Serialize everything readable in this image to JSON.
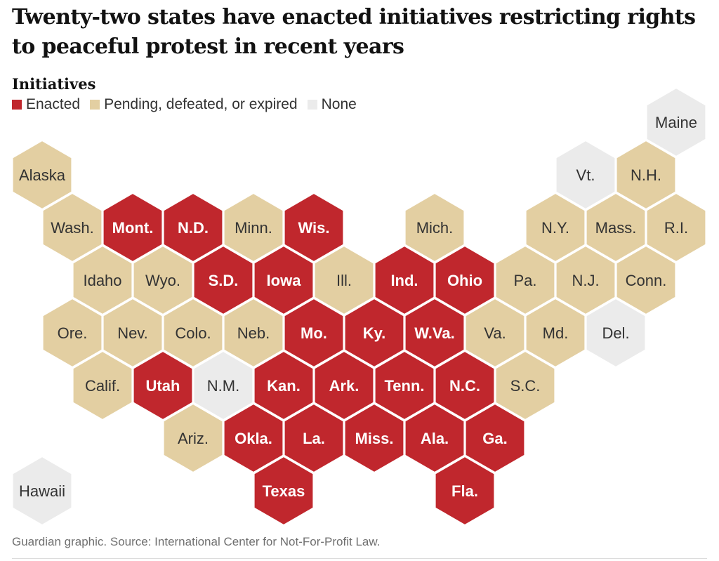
{
  "title": "Twenty-two states have enacted initiatives restricting rights to peaceful protest in recent years",
  "legend": {
    "title": "Initiatives",
    "items": [
      {
        "key": "enacted",
        "label": "Enacted",
        "color": "#c0272d"
      },
      {
        "key": "pending",
        "label": "Pending, defeated, or expired",
        "color": "#e3cfa2"
      },
      {
        "key": "none",
        "label": "None",
        "color": "#ebebeb"
      }
    ]
  },
  "source": "Guardian graphic. Source: International Center for Not-For-Profit Law.",
  "chart_data": {
    "type": "hex-tile-map",
    "states": [
      {
        "label": "Maine",
        "status": "none",
        "row": 0,
        "col": 10.5
      },
      {
        "label": "Vt.",
        "status": "none",
        "row": 1,
        "col": 9
      },
      {
        "label": "N.H.",
        "status": "pending",
        "row": 1,
        "col": 10
      },
      {
        "label": "Alaska",
        "status": "pending",
        "row": 1,
        "col": 0
      },
      {
        "label": "Wash.",
        "status": "pending",
        "row": 2,
        "col": 0.5
      },
      {
        "label": "Mont.",
        "status": "enacted",
        "row": 2,
        "col": 1.5
      },
      {
        "label": "N.D.",
        "status": "enacted",
        "row": 2,
        "col": 2.5
      },
      {
        "label": "Minn.",
        "status": "pending",
        "row": 2,
        "col": 3.5
      },
      {
        "label": "Wis.",
        "status": "enacted",
        "row": 2,
        "col": 4.5
      },
      {
        "label": "Mich.",
        "status": "pending",
        "row": 2,
        "col": 6.5
      },
      {
        "label": "N.Y.",
        "status": "pending",
        "row": 2,
        "col": 8.5
      },
      {
        "label": "Mass.",
        "status": "pending",
        "row": 2,
        "col": 9.5
      },
      {
        "label": "R.I.",
        "status": "pending",
        "row": 2,
        "col": 10.5
      },
      {
        "label": "Idaho",
        "status": "pending",
        "row": 3,
        "col": 1
      },
      {
        "label": "Wyo.",
        "status": "pending",
        "row": 3,
        "col": 2
      },
      {
        "label": "S.D.",
        "status": "enacted",
        "row": 3,
        "col": 3
      },
      {
        "label": "Iowa",
        "status": "enacted",
        "row": 3,
        "col": 4
      },
      {
        "label": "Ill.",
        "status": "pending",
        "row": 3,
        "col": 5
      },
      {
        "label": "Ind.",
        "status": "enacted",
        "row": 3,
        "col": 6
      },
      {
        "label": "Ohio",
        "status": "enacted",
        "row": 3,
        "col": 7
      },
      {
        "label": "Pa.",
        "status": "pending",
        "row": 3,
        "col": 8
      },
      {
        "label": "N.J.",
        "status": "pending",
        "row": 3,
        "col": 9
      },
      {
        "label": "Conn.",
        "status": "pending",
        "row": 3,
        "col": 10
      },
      {
        "label": "Ore.",
        "status": "pending",
        "row": 4,
        "col": 0.5
      },
      {
        "label": "Nev.",
        "status": "pending",
        "row": 4,
        "col": 1.5
      },
      {
        "label": "Colo.",
        "status": "pending",
        "row": 4,
        "col": 2.5
      },
      {
        "label": "Neb.",
        "status": "pending",
        "row": 4,
        "col": 3.5
      },
      {
        "label": "Mo.",
        "status": "enacted",
        "row": 4,
        "col": 4.5
      },
      {
        "label": "Ky.",
        "status": "enacted",
        "row": 4,
        "col": 5.5
      },
      {
        "label": "W.Va.",
        "status": "enacted",
        "row": 4,
        "col": 6.5
      },
      {
        "label": "Va.",
        "status": "pending",
        "row": 4,
        "col": 7.5
      },
      {
        "label": "Md.",
        "status": "pending",
        "row": 4,
        "col": 8.5
      },
      {
        "label": "Del.",
        "status": "none",
        "row": 4,
        "col": 9.5
      },
      {
        "label": "Calif.",
        "status": "pending",
        "row": 5,
        "col": 1
      },
      {
        "label": "Utah",
        "status": "enacted",
        "row": 5,
        "col": 2
      },
      {
        "label": "N.M.",
        "status": "none",
        "row": 5,
        "col": 3
      },
      {
        "label": "Kan.",
        "status": "enacted",
        "row": 5,
        "col": 4
      },
      {
        "label": "Ark.",
        "status": "enacted",
        "row": 5,
        "col": 5
      },
      {
        "label": "Tenn.",
        "status": "enacted",
        "row": 5,
        "col": 6
      },
      {
        "label": "N.C.",
        "status": "enacted",
        "row": 5,
        "col": 7
      },
      {
        "label": "S.C.",
        "status": "pending",
        "row": 5,
        "col": 8
      },
      {
        "label": "Ariz.",
        "status": "pending",
        "row": 6,
        "col": 2.5
      },
      {
        "label": "Okla.",
        "status": "enacted",
        "row": 6,
        "col": 3.5
      },
      {
        "label": "La.",
        "status": "enacted",
        "row": 6,
        "col": 4.5
      },
      {
        "label": "Miss.",
        "status": "enacted",
        "row": 6,
        "col": 5.5
      },
      {
        "label": "Ala.",
        "status": "enacted",
        "row": 6,
        "col": 6.5
      },
      {
        "label": "Ga.",
        "status": "enacted",
        "row": 6,
        "col": 7.5
      },
      {
        "label": "Hawaii",
        "status": "none",
        "row": 7,
        "col": 0
      },
      {
        "label": "Texas",
        "status": "enacted",
        "row": 7,
        "col": 4
      },
      {
        "label": "Fla.",
        "status": "enacted",
        "row": 7,
        "col": 7
      }
    ]
  }
}
